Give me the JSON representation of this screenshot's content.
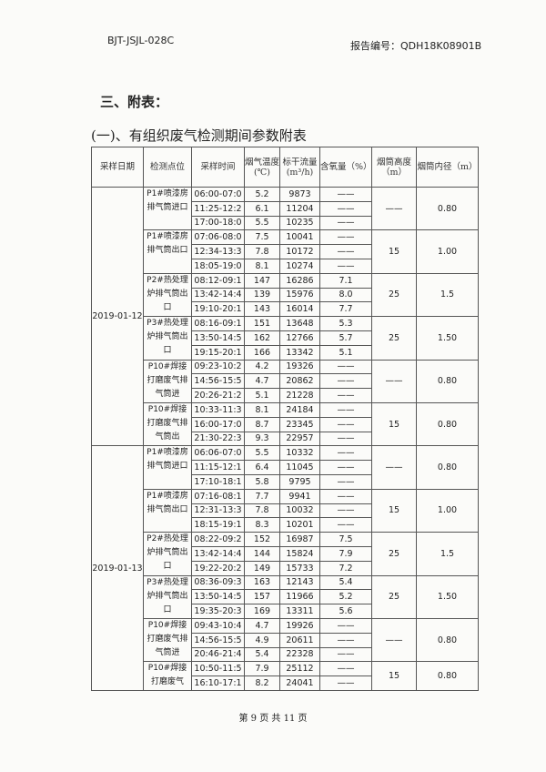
{
  "header": {
    "doc_code": "BJT-JSJL-028C",
    "report_no": "报告编号：QDH18K08901B"
  },
  "section_title": "三、附表：",
  "table_title": "(一)、有组织废气检测期间参数附表",
  "table": {
    "columns": [
      "采样日期",
      "检测点位",
      "采样时间",
      "烟气温度(℃)",
      "标干流量(m³/h)",
      "含氧量（%）",
      "烟筒高度（m）",
      "烟筒内径（m）"
    ],
    "days": [
      {
        "date": "2019-01-12",
        "groups": [
          {
            "point": "P1#喷漆房排气筒进口",
            "height": "——",
            "diameter": "0.80",
            "rows": [
              [
                "06:00-07:0",
                "5.2",
                "9873",
                "——"
              ],
              [
                "11:25-12:2",
                "6.1",
                "11204",
                "——"
              ],
              [
                "17:00-18:0",
                "5.5",
                "10235",
                "——"
              ]
            ]
          },
          {
            "point": "P1#喷漆房排气筒出口",
            "height": "15",
            "diameter": "1.00",
            "rows": [
              [
                "07:06-08:0",
                "7.5",
                "10041",
                "——"
              ],
              [
                "12:34-13:3",
                "7.8",
                "10172",
                "——"
              ],
              [
                "18:05-19:0",
                "8.1",
                "10274",
                "——"
              ]
            ]
          },
          {
            "point": "P2#热处理炉排气筒出口",
            "height": "25",
            "diameter": "1.5",
            "rows": [
              [
                "08:12-09:1",
                "147",
                "16286",
                "7.1"
              ],
              [
                "13:42-14:4",
                "139",
                "15976",
                "8.0"
              ],
              [
                "19:10-20:1",
                "143",
                "16014",
                "7.7"
              ]
            ]
          },
          {
            "point": "P3#热处理炉排气筒出口",
            "height": "25",
            "diameter": "1.50",
            "rows": [
              [
                "08:16-09:1",
                "151",
                "13648",
                "5.3"
              ],
              [
                "13:50-14:5",
                "162",
                "12766",
                "5.7"
              ],
              [
                "19:15-20:1",
                "166",
                "13342",
                "5.1"
              ]
            ]
          },
          {
            "point": "P10#焊接打磨废气排气筒进",
            "height": "——",
            "diameter": "0.80",
            "rows": [
              [
                "09:23-10:2",
                "4.2",
                "19326",
                "——"
              ],
              [
                "14:56-15:5",
                "4.7",
                "20862",
                "——"
              ],
              [
                "20:26-21:2",
                "5.1",
                "21228",
                "——"
              ]
            ]
          },
          {
            "point": "P10#焊接打磨废气排气筒出",
            "height": "15",
            "diameter": "0.80",
            "rows": [
              [
                "10:33-11:3",
                "8.1",
                "24184",
                "——"
              ],
              [
                "16:00-17:0",
                "8.7",
                "23345",
                "——"
              ],
              [
                "21:30-22:3",
                "9.3",
                "22957",
                "——"
              ]
            ]
          }
        ]
      },
      {
        "date": "2019-01-13",
        "groups": [
          {
            "point": "P1#喷漆房排气筒进口",
            "height": "——",
            "diameter": "0.80",
            "rows": [
              [
                "06:06-07:0",
                "5.5",
                "10332",
                "——"
              ],
              [
                "11:15-12:1",
                "6.4",
                "11045",
                "——"
              ],
              [
                "17:10-18:1",
                "5.8",
                "9795",
                "——"
              ]
            ]
          },
          {
            "point": "P1#喷漆房排气筒出口",
            "height": "15",
            "diameter": "1.00",
            "rows": [
              [
                "07:16-08:1",
                "7.7",
                "9941",
                "——"
              ],
              [
                "12:31-13:3",
                "7.8",
                "10032",
                "——"
              ],
              [
                "18:15-19:1",
                "8.3",
                "10201",
                "——"
              ]
            ]
          },
          {
            "point": "P2#热处理炉排气筒出口",
            "height": "25",
            "diameter": "1.5",
            "rows": [
              [
                "08:22-09:2",
                "152",
                "16987",
                "7.5"
              ],
              [
                "13:42-14:4",
                "144",
                "15824",
                "7.9"
              ],
              [
                "19:22-20:2",
                "149",
                "15733",
                "7.2"
              ]
            ]
          },
          {
            "point": "P3#热处理炉排气筒出口",
            "height": "25",
            "diameter": "1.50",
            "rows": [
              [
                "08:36-09:3",
                "163",
                "12143",
                "5.4"
              ],
              [
                "13:50-14:5",
                "157",
                "11966",
                "5.2"
              ],
              [
                "19:35-20:3",
                "169",
                "13311",
                "5.6"
              ]
            ]
          },
          {
            "point": "P10#焊接打磨废气排气筒进",
            "height": "——",
            "diameter": "0.80",
            "rows": [
              [
                "09:43-10:4",
                "4.7",
                "19926",
                "——"
              ],
              [
                "14:56-15:5",
                "4.9",
                "20611",
                "——"
              ],
              [
                "20:46-21:4",
                "5.4",
                "22328",
                "——"
              ]
            ]
          },
          {
            "point": "P10#焊接打磨废气",
            "height": "15",
            "diameter": "0.80",
            "rows": [
              [
                "10:50-11:5",
                "7.9",
                "25112",
                "——"
              ],
              [
                "16:10-17:1",
                "8.2",
                "24041",
                "——"
              ]
            ]
          }
        ]
      }
    ]
  },
  "footer": "第 9 页 共 11 页",
  "watermark": "BJT"
}
